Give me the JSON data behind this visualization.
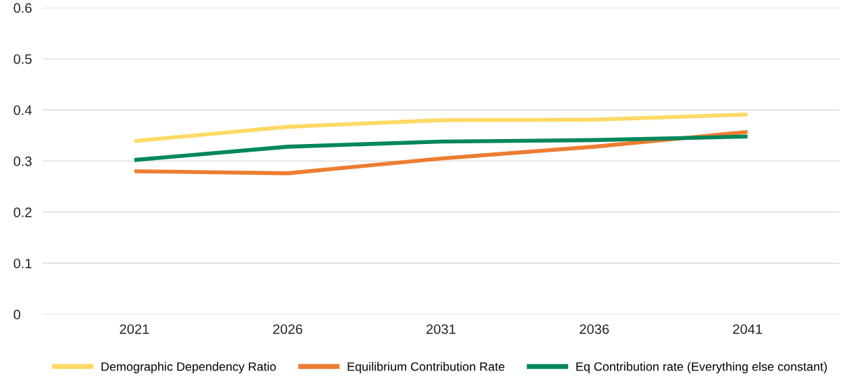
{
  "chart_data": {
    "type": "line",
    "categories": [
      "2021",
      "2026",
      "2031",
      "2036",
      "2041"
    ],
    "series": [
      {
        "name": "Demographic Dependency Ratio",
        "color": "#ffd966",
        "values": [
          0.339,
          0.367,
          0.38,
          0.381,
          0.391
        ]
      },
      {
        "name": "Equilibrium Contribution Rate",
        "color": "#ed7d31",
        "values": [
          0.28,
          0.276,
          0.305,
          0.328,
          0.357
        ]
      },
      {
        "name": "Eq Contribution rate (Everything else constant)",
        "color": "#00875a",
        "values": [
          0.302,
          0.328,
          0.338,
          0.341,
          0.348
        ]
      }
    ],
    "ylim": [
      0,
      0.6
    ],
    "yticks": [
      {
        "value": 0,
        "label": "0"
      },
      0.1,
      0.2,
      0.3,
      0.4,
      0.5,
      0.6
    ],
    "grid": "y",
    "legend": "bottom",
    "marker": "none",
    "line_style": "solid"
  }
}
